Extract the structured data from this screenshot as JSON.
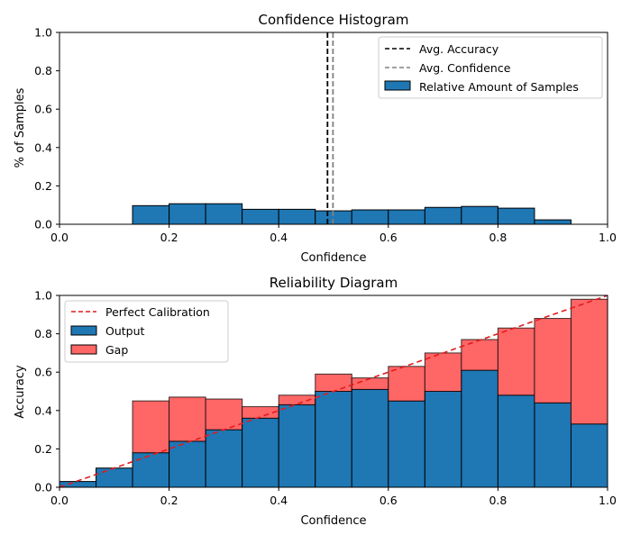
{
  "chart_data": [
    {
      "type": "bar",
      "title": "Confidence Histogram",
      "xlabel": "Confidence",
      "ylabel": "% of Samples",
      "xlim": [
        0,
        1
      ],
      "ylim": [
        0,
        1
      ],
      "xticks": [
        "0.0",
        "0.2",
        "0.4",
        "0.6",
        "0.8",
        "1.0"
      ],
      "yticks": [
        "0.0",
        "0.2",
        "0.4",
        "0.6",
        "0.8",
        "1.0"
      ],
      "bin_edges": [
        0.1333,
        0.2,
        0.2667,
        0.3333,
        0.4,
        0.4667,
        0.5333,
        0.6,
        0.6667,
        0.7333,
        0.8,
        0.8667,
        0.9333
      ],
      "series": [
        {
          "name": "Relative Amount of Samples",
          "values": [
            0.097,
            0.107,
            0.107,
            0.078,
            0.078,
            0.07,
            0.075,
            0.075,
            0.088,
            0.093,
            0.084,
            0.023
          ],
          "color": "#1f77b4"
        }
      ],
      "vlines": [
        {
          "name": "Avg. Accuracy",
          "x": 0.489,
          "color": "#000000",
          "style": "dashed"
        },
        {
          "name": "Avg. Confidence",
          "x": 0.499,
          "color": "#808080",
          "style": "dashed"
        }
      ],
      "legend": [
        "Avg. Accuracy",
        "Avg. Confidence",
        "Relative Amount of Samples"
      ],
      "legend_position": "top-right"
    },
    {
      "type": "bar",
      "title": "Reliability Diagram",
      "xlabel": "Confidence",
      "ylabel": "Accuracy",
      "xlim": [
        0,
        1
      ],
      "ylim": [
        0,
        1
      ],
      "xticks": [
        "0.0",
        "0.2",
        "0.4",
        "0.6",
        "0.8",
        "1.0"
      ],
      "yticks": [
        "0.0",
        "0.2",
        "0.4",
        "0.6",
        "0.8",
        "1.0"
      ],
      "bin_width": 0.0667,
      "bin_starts": [
        0.0,
        0.0667,
        0.1333,
        0.2,
        0.2667,
        0.3333,
        0.4,
        0.4667,
        0.5333,
        0.6,
        0.6667,
        0.7333,
        0.8,
        0.8667,
        0.9333
      ],
      "series": [
        {
          "name": "Output",
          "values": [
            0.03,
            0.1,
            0.18,
            0.24,
            0.3,
            0.36,
            0.43,
            0.5,
            0.51,
            0.45,
            0.5,
            0.61,
            0.48,
            0.44,
            0.33
          ],
          "color": "#1f77b4"
        },
        {
          "name": "Gap",
          "values": [
            0.03,
            0.1,
            0.45,
            0.47,
            0.46,
            0.42,
            0.48,
            0.59,
            0.57,
            0.63,
            0.7,
            0.77,
            0.83,
            0.88,
            0.98
          ],
          "color": "#ff6666",
          "over_color": "#a3243d"
        }
      ],
      "reference_line": {
        "name": "Perfect Calibration",
        "from": [
          0,
          0
        ],
        "to": [
          1,
          1
        ],
        "color": "#e31a1c",
        "style": "dashed"
      },
      "legend": [
        "Perfect Calibration",
        "Output",
        "Gap"
      ],
      "legend_position": "top-left"
    }
  ]
}
